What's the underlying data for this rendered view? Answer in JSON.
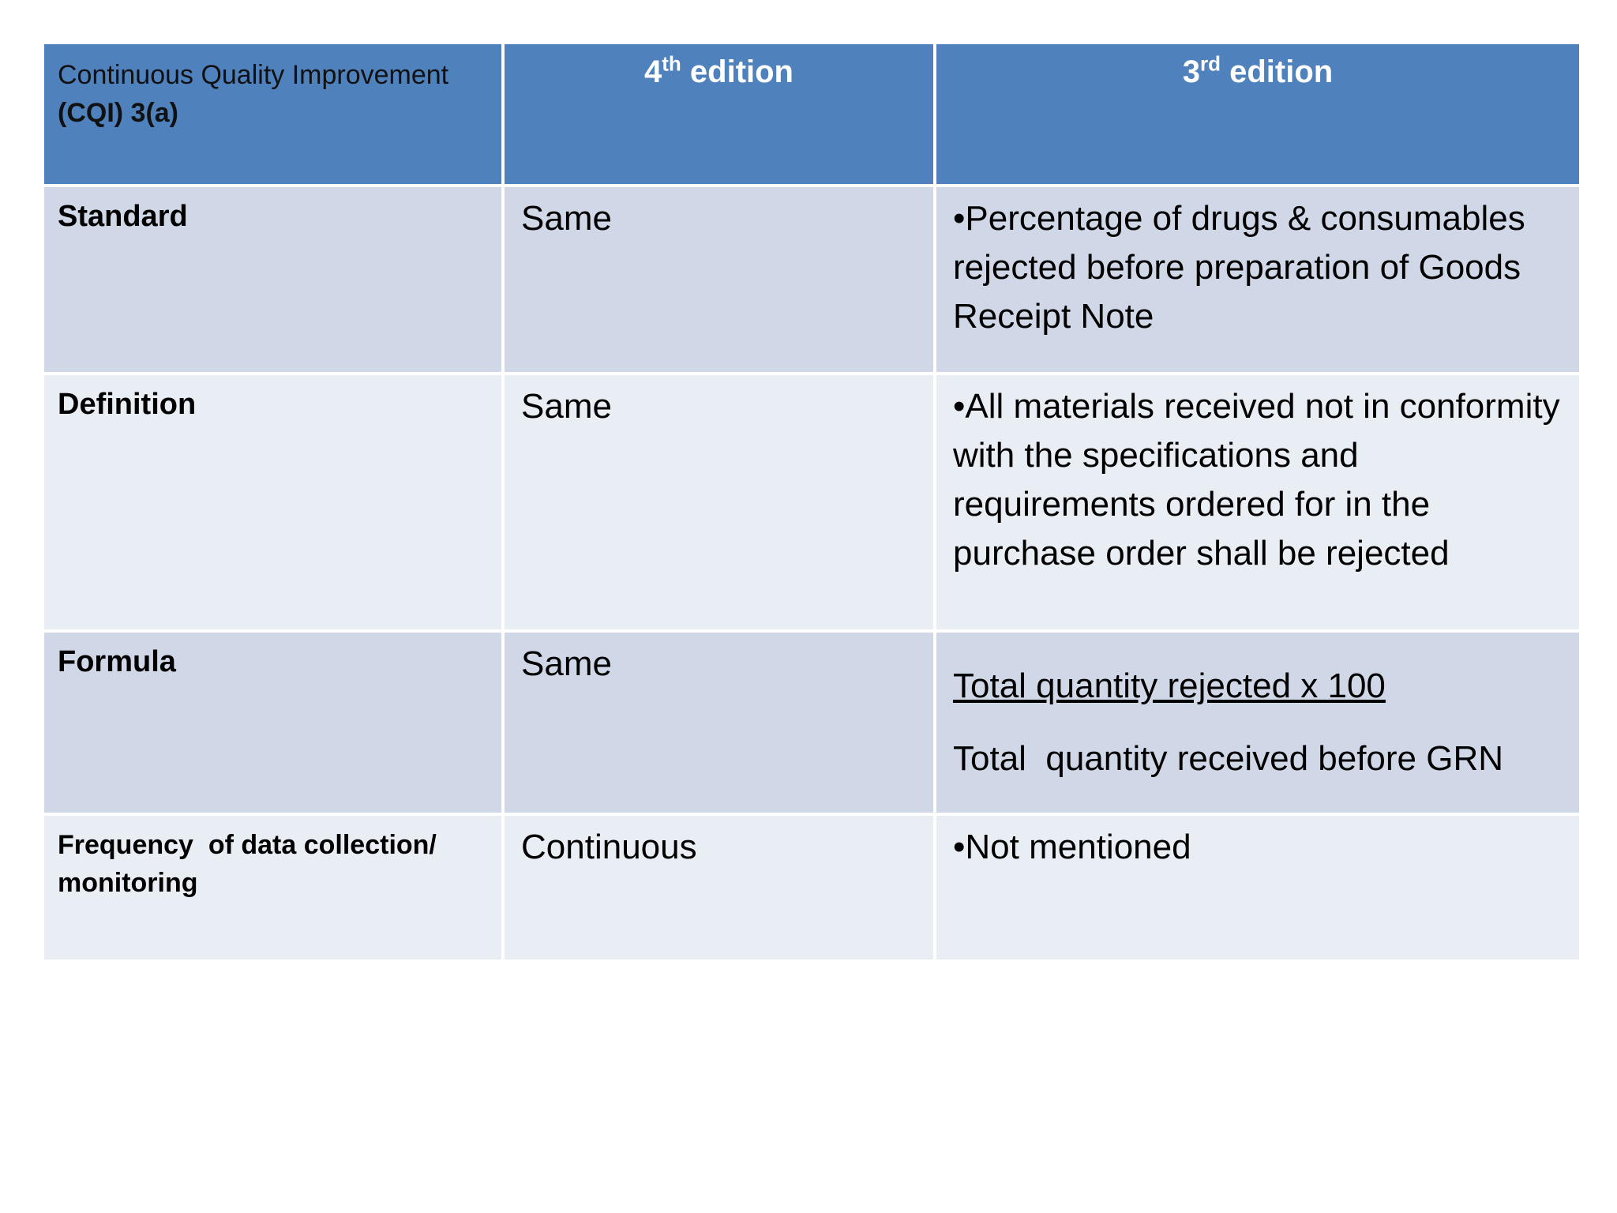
{
  "header": {
    "cqi_line1": "Continuous Quality Improvement",
    "cqi_line2": "(CQI) 3(a)",
    "col2_num": "4",
    "col2_sup": "th",
    "col2_word": " edition",
    "col3_num": "3",
    "col3_sup": "rd",
    "col3_word": " edition"
  },
  "rows": [
    {
      "label": "Standard",
      "fourth": "Same",
      "third": "•Percentage of drugs & consumables rejected before preparation of Goods Receipt Note"
    },
    {
      "label": "Definition",
      "fourth": "Same",
      "third": "•All materials received not in conformity with the specifications and requirements ordered for in the purchase order shall be rejected"
    },
    {
      "label": "Formula",
      "fourth": "Same",
      "third_numerator": "Total quantity rejected x 100",
      "third_denominator": "Total  quantity received before GRN"
    },
    {
      "label_line1": "Frequency  of data collection/",
      "label_line2": "monitoring",
      "fourth": "Continuous",
      "third": "•Not mentioned"
    }
  ]
}
